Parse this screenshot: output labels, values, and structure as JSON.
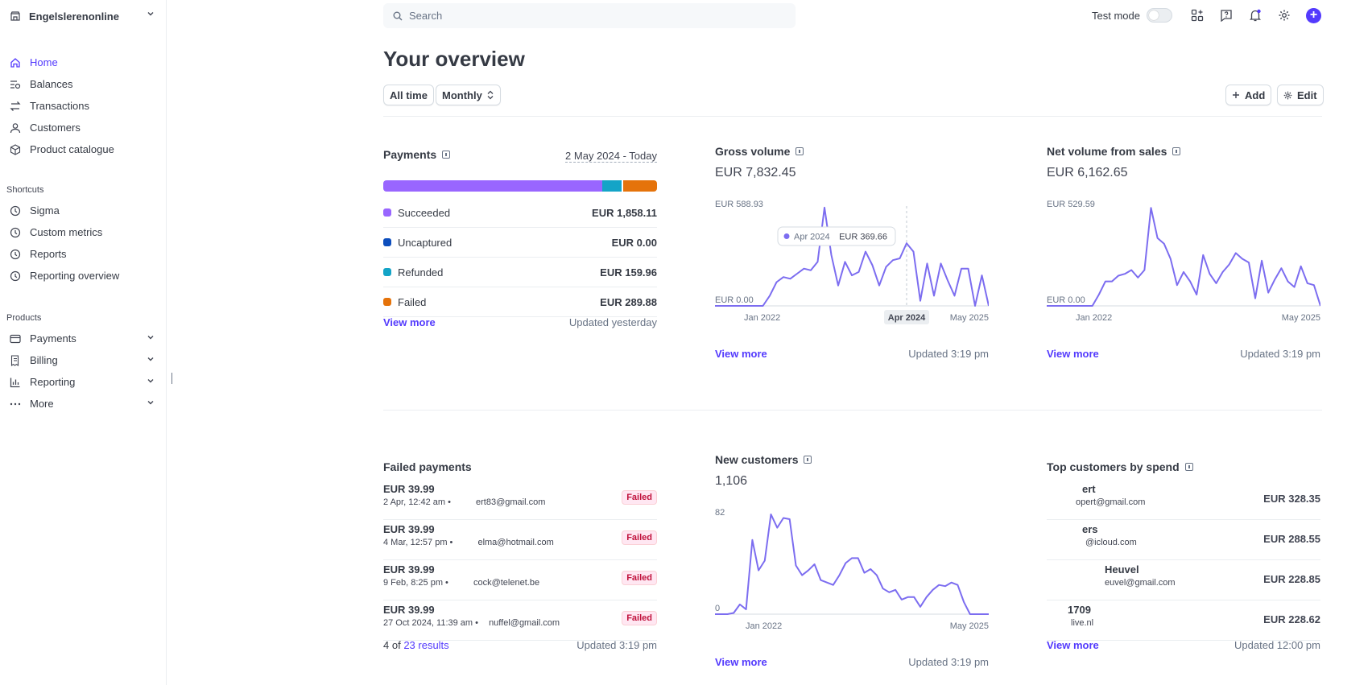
{
  "sidebar": {
    "account_name": "Engelslerenonline",
    "nav": [
      {
        "label": "Home",
        "icon": "home-icon"
      },
      {
        "label": "Balances",
        "icon": "balances-icon"
      },
      {
        "label": "Transactions",
        "icon": "transactions-icon"
      },
      {
        "label": "Customers",
        "icon": "customers-icon"
      },
      {
        "label": "Product catalogue",
        "icon": "product-catalogue-icon"
      }
    ],
    "shortcuts_label": "Shortcuts",
    "shortcuts": [
      {
        "label": "Sigma",
        "icon": "clock-icon"
      },
      {
        "label": "Custom metrics",
        "icon": "clock-icon"
      },
      {
        "label": "Reports",
        "icon": "clock-icon"
      },
      {
        "label": "Reporting overview",
        "icon": "clock-icon"
      }
    ],
    "products_label": "Products",
    "products": [
      {
        "label": "Payments",
        "icon": "payments-icon"
      },
      {
        "label": "Billing",
        "icon": "billing-icon"
      },
      {
        "label": "Reporting",
        "icon": "reporting-icon"
      },
      {
        "label": "More",
        "icon": "more-icon"
      }
    ]
  },
  "topbar": {
    "search_placeholder": "Search",
    "test_mode_label": "Test mode"
  },
  "header": {
    "title": "Your overview",
    "range_label": "All time",
    "interval_label": "Monthly",
    "add_label": "Add",
    "edit_label": "Edit"
  },
  "payments": {
    "title": "Payments",
    "date_range": "2 May 2024 - Today",
    "rows": [
      {
        "label": "Succeeded",
        "amount": "EUR 1,858.11",
        "color": "#9966ff"
      },
      {
        "label": "Uncaptured",
        "amount": "EUR 0.00",
        "color": "#0d4ebd"
      },
      {
        "label": "Refunded",
        "amount": "EUR 159.96",
        "color": "#14a4c7"
      },
      {
        "label": "Failed",
        "amount": "EUR 289.88",
        "color": "#e5730b"
      }
    ],
    "bar_fractions": {
      "succeeded": 0.8,
      "refunded": 0.07,
      "failed": 0.125
    },
    "view_more": "View more",
    "updated": "Updated yesterday"
  },
  "gross_volume": {
    "title": "Gross volume",
    "value": "EUR 7,832.45",
    "view_more": "View more",
    "updated": "Updated 3:19 pm",
    "tooltip": {
      "date": "Apr 2024",
      "amount": "EUR 369.66"
    },
    "chart_data": {
      "type": "line",
      "x_start_label": "Jan 2022",
      "x_mid_label": "Apr 2024",
      "x_end_label": "May 2025",
      "y_max_label": "EUR 588.93",
      "y_min_label": "EUR 0.00",
      "ylim": [
        0,
        588.93
      ],
      "values": [
        0,
        0,
        0,
        0,
        0,
        0,
        0,
        0,
        60,
        140,
        170,
        160,
        190,
        220,
        210,
        260,
        580,
        300,
        120,
        260,
        180,
        200,
        320,
        240,
        120,
        230,
        270,
        280,
        369.66,
        320,
        30,
        250,
        60,
        250,
        150,
        60,
        220,
        220,
        0,
        180,
        0
      ]
    }
  },
  "net_volume": {
    "title": "Net volume from sales",
    "value": "EUR 6,162.65",
    "view_more": "View more",
    "updated": "Updated 3:19 pm",
    "chart_data": {
      "type": "line",
      "x_start_label": "Jan 2022",
      "x_end_label": "May 2025",
      "y_max_label": "EUR 529.59",
      "y_min_label": "EUR 0.00",
      "ylim": [
        0,
        529.59
      ],
      "values": [
        0,
        0,
        0,
        0,
        0,
        0,
        0,
        0,
        60,
        130,
        130,
        160,
        170,
        190,
        150,
        190,
        520,
        360,
        330,
        250,
        110,
        180,
        130,
        60,
        270,
        170,
        120,
        180,
        220,
        280,
        250,
        230,
        40,
        240,
        70,
        140,
        200,
        130,
        100,
        210,
        120,
        110,
        0
      ]
    }
  },
  "failed_payments": {
    "title": "Failed payments",
    "rows": [
      {
        "amount": "EUR 39.99",
        "meta": "2 Apr, 12:42 am • ",
        "email": "ert83@gmail.com",
        "status": "Failed"
      },
      {
        "amount": "EUR 39.99",
        "meta": "4 Mar, 12:57 pm • ",
        "email": "elma@hotmail.com",
        "status": "Failed"
      },
      {
        "amount": "EUR 39.99",
        "meta": "9 Feb, 8:25 pm • ",
        "email": "cock@telenet.be",
        "status": "Failed"
      },
      {
        "amount": "EUR 39.99",
        "meta": "27 Oct 2024, 11:39 am • ",
        "email": "nuffel@gmail.com",
        "status": "Failed"
      }
    ],
    "count_prefix": "4 of",
    "count_link": "23 results",
    "updated": "Updated 3:19 pm"
  },
  "new_customers": {
    "title": "New customers",
    "value": "1,106",
    "view_more": "View more",
    "updated": "Updated 3:19 pm",
    "chart_data": {
      "type": "line",
      "x_start_label": "Jan 2022",
      "x_end_label": "May 2025",
      "y_max_label": "82",
      "y_min_label": "0",
      "ylim": [
        0,
        82
      ],
      "values": [
        0,
        0,
        0,
        1,
        8,
        4,
        61,
        36,
        44,
        82,
        71,
        79,
        78,
        40,
        32,
        36,
        41,
        28,
        26,
        24,
        32,
        42,
        46,
        46,
        34,
        37,
        32,
        21,
        18,
        20,
        12,
        14,
        14,
        6,
        14,
        20,
        24,
        23,
        26,
        24,
        10,
        0,
        0,
        0,
        0
      ]
    }
  },
  "top_customers": {
    "title": "Top customers by spend",
    "rows": [
      {
        "name": "ert",
        "email": "opert@gmail.com",
        "amount": "EUR 328.35"
      },
      {
        "name": "ers",
        "email": "@icloud.com",
        "amount": "EUR 288.55"
      },
      {
        "name": "Heuvel",
        "email": "euvel@gmail.com",
        "amount": "EUR 228.85"
      },
      {
        "name": "1709",
        "email": "live.nl",
        "amount": "EUR 228.62"
      }
    ],
    "view_more": "View more",
    "updated": "Updated 12:00 pm"
  },
  "colors": {
    "accent": "#533afd",
    "line": "#7c6df0"
  }
}
